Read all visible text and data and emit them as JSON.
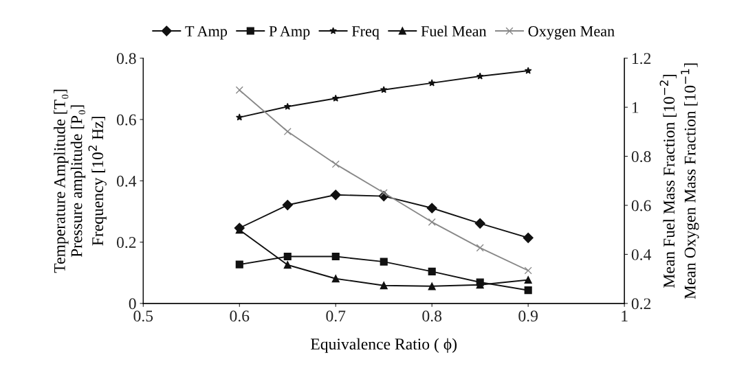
{
  "chart_data": {
    "type": "line",
    "xlabel": "Equivalence Ratio ( ϕ)",
    "ylabel": "Temperature Amplitude [T₀]\nPressure amplitude [P₀]\nFrequency [10$^{2}$ Hz]",
    "y2label": "Mean Fuel Mass Fraction [10$^{−2}$]\nMean Oxygen Mass Fraction [10$^{−1}$]",
    "x": [
      0.6,
      0.65,
      0.7,
      0.75,
      0.8,
      0.85,
      0.9
    ],
    "xlim": [
      0.5,
      1
    ],
    "xticks": [
      0.5,
      0.6,
      0.7,
      0.8,
      0.9,
      1
    ],
    "ylim": [
      0,
      0.8
    ],
    "yticks": [
      0,
      0.2,
      0.4,
      0.6,
      0.8
    ],
    "y2lim": [
      0.2,
      1.2
    ],
    "y2ticks": [
      0.2,
      0.4,
      0.6,
      0.8,
      1,
      1.2
    ],
    "grid": false,
    "legend": "top",
    "line_style": "solid",
    "series": [
      {
        "name": "T Amp",
        "color": "#111111",
        "marker": "diamond",
        "values": [
          0.246,
          0.321,
          0.354,
          0.35,
          0.311,
          0.261,
          0.214
        ]
      },
      {
        "name": "P Amp",
        "color": "#111111",
        "marker": "square",
        "values": [
          0.127,
          0.153,
          0.153,
          0.136,
          0.104,
          0.069,
          0.043
        ]
      },
      {
        "name": "Freq",
        "color": "#111111",
        "marker": "star",
        "values": [
          0.607,
          0.642,
          0.669,
          0.697,
          0.719,
          0.741,
          0.759
        ]
      },
      {
        "name": "Fuel Mean",
        "color": "#111111",
        "marker": "triangle",
        "axis": "y2",
        "values": [
          0.5,
          0.357,
          0.301,
          0.273,
          0.27,
          0.276,
          0.296
        ]
      },
      {
        "name": "Oxygen Mean",
        "color": "#888888",
        "marker": "cross",
        "axis": "y2",
        "values": [
          1.07,
          0.901,
          0.768,
          0.651,
          0.532,
          0.427,
          0.334
        ]
      }
    ]
  }
}
